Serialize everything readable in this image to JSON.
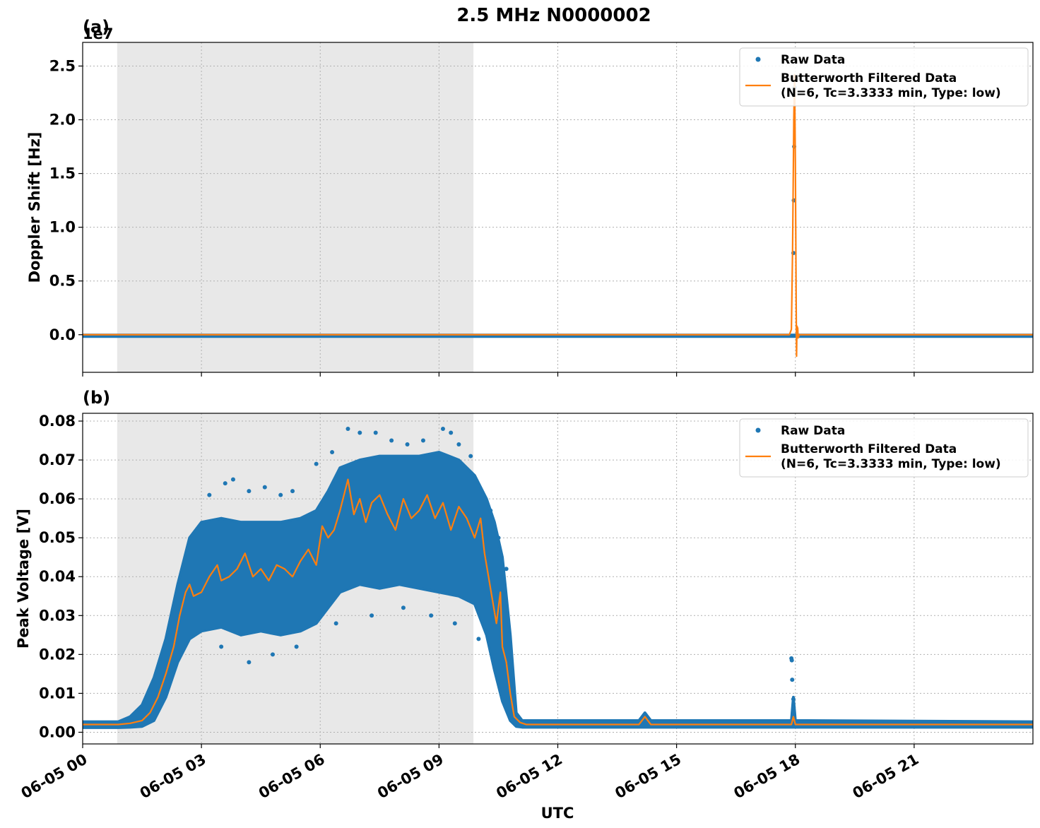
{
  "figure": {
    "title": "2.5 MHz N0000002",
    "xlabel": "UTC"
  },
  "colors": {
    "raw": "#1f77b4",
    "filtered": "#ff7f0e",
    "shade": "#e8e8e8",
    "grid": "#b0b0b0"
  },
  "chart_data": [
    {
      "type": "scatter",
      "panel_label": "(a)",
      "ylabel": "Doppler Shift [Hz]",
      "y_exponent_label": "1e7",
      "x_unit": "hours UTC on 06-05",
      "xlim": [
        0,
        24
      ],
      "ylim": [
        -0.35,
        2.72
      ],
      "y_scale_note": "values in units of 1e7 Hz",
      "yticks": [
        0.0,
        0.5,
        1.0,
        1.5,
        2.0,
        2.5
      ],
      "ytick_labels": [
        "0.0",
        "0.5",
        "1.0",
        "1.5",
        "2.0",
        "2.5"
      ],
      "xticks": [
        0,
        3,
        6,
        9,
        12,
        15,
        18,
        21
      ],
      "xtick_labels": [
        "06-05 00",
        "06-05 03",
        "06-05 06",
        "06-05 09",
        "06-05 12",
        "06-05 15",
        "06-05 18",
        "06-05 21"
      ],
      "shaded_region": [
        0.87,
        9.87
      ],
      "grid": true,
      "legend": {
        "position": "top-right",
        "entries": [
          {
            "label": "Raw Data",
            "marker": "dot"
          },
          {
            "label": "Butterworth Filtered Data",
            "label2": "(N=6, Tc=3.3333 min, Type: low)",
            "marker": "line"
          }
        ]
      },
      "series": [
        {
          "name": "Raw Data",
          "baseline": [
            [
              0,
              -0.01
            ],
            [
              24,
              -0.01
            ]
          ],
          "points": [
            [
              17.95,
              0.76
            ],
            [
              17.96,
              1.25
            ],
            [
              17.97,
              1.75
            ],
            [
              17.98,
              2.3
            ]
          ]
        },
        {
          "name": "Butterworth Filtered Data",
          "points": [
            [
              0,
              0.0
            ],
            [
              17.85,
              0.0
            ],
            [
              17.9,
              0.05
            ],
            [
              17.93,
              0.8
            ],
            [
              17.96,
              2.0
            ],
            [
              17.98,
              2.42
            ],
            [
              18.0,
              1.6
            ],
            [
              18.02,
              0.3
            ],
            [
              18.03,
              -0.2
            ],
            [
              18.04,
              0.08
            ],
            [
              18.06,
              0.06
            ],
            [
              18.07,
              -0.03
            ],
            [
              18.1,
              0.0
            ],
            [
              24,
              0.0
            ]
          ]
        }
      ]
    },
    {
      "type": "scatter",
      "panel_label": "(b)",
      "ylabel": "Peak Voltage [V]",
      "x_unit": "hours UTC on 06-05",
      "xlim": [
        0,
        24
      ],
      "ylim": [
        -0.003,
        0.082
      ],
      "yticks": [
        0.0,
        0.01,
        0.02,
        0.03,
        0.04,
        0.05,
        0.06,
        0.07,
        0.08
      ],
      "ytick_labels": [
        "0.00",
        "0.01",
        "0.02",
        "0.03",
        "0.04",
        "0.05",
        "0.06",
        "0.07",
        "0.08"
      ],
      "xticks": [
        0,
        3,
        6,
        9,
        12,
        15,
        18,
        21
      ],
      "xtick_labels": [
        "06-05 00",
        "06-05 03",
        "06-05 06",
        "06-05 09",
        "06-05 12",
        "06-05 15",
        "06-05 18",
        "06-05 21"
      ],
      "shaded_region": [
        0.87,
        9.87
      ],
      "grid": true,
      "legend": {
        "position": "top-right",
        "entries": [
          {
            "label": "Raw Data",
            "marker": "dot"
          },
          {
            "label": "Butterworth Filtered Data",
            "label2": "(N=6, Tc=3.3333 min, Type: low)",
            "marker": "line"
          }
        ]
      },
      "series": [
        {
          "name": "Raw Data",
          "band_upper": [
            [
              0,
              0.0027
            ],
            [
              0.9,
              0.0027
            ],
            [
              1.2,
              0.004
            ],
            [
              1.5,
              0.007
            ],
            [
              1.8,
              0.014
            ],
            [
              2.1,
              0.024
            ],
            [
              2.4,
              0.038
            ],
            [
              2.7,
              0.05
            ],
            [
              3.0,
              0.054
            ],
            [
              3.5,
              0.055
            ],
            [
              4.0,
              0.054
            ],
            [
              4.5,
              0.054
            ],
            [
              5.0,
              0.054
            ],
            [
              5.5,
              0.055
            ],
            [
              5.9,
              0.057
            ],
            [
              6.2,
              0.062
            ],
            [
              6.5,
              0.068
            ],
            [
              7.0,
              0.07
            ],
            [
              7.5,
              0.071
            ],
            [
              8.0,
              0.071
            ],
            [
              8.5,
              0.071
            ],
            [
              9.0,
              0.072
            ],
            [
              9.5,
              0.07
            ],
            [
              9.9,
              0.066
            ],
            [
              10.2,
              0.06
            ],
            [
              10.4,
              0.054
            ],
            [
              10.6,
              0.045
            ],
            [
              10.8,
              0.025
            ],
            [
              10.95,
              0.005
            ],
            [
              11.1,
              0.003
            ],
            [
              14.05,
              0.003
            ],
            [
              14.2,
              0.005
            ],
            [
              14.35,
              0.003
            ],
            [
              17.9,
              0.003
            ],
            [
              17.95,
              0.009
            ],
            [
              18.0,
              0.003
            ],
            [
              24,
              0.0027
            ]
          ],
          "band_lower": [
            [
              0,
              0.0012
            ],
            [
              0.9,
              0.0012
            ],
            [
              1.2,
              0.0013
            ],
            [
              1.5,
              0.0015
            ],
            [
              1.8,
              0.003
            ],
            [
              2.1,
              0.009
            ],
            [
              2.4,
              0.018
            ],
            [
              2.7,
              0.024
            ],
            [
              3.0,
              0.026
            ],
            [
              3.5,
              0.027
            ],
            [
              4.0,
              0.025
            ],
            [
              4.5,
              0.026
            ],
            [
              5.0,
              0.025
            ],
            [
              5.5,
              0.026
            ],
            [
              5.9,
              0.028
            ],
            [
              6.2,
              0.032
            ],
            [
              6.5,
              0.036
            ],
            [
              7.0,
              0.038
            ],
            [
              7.5,
              0.037
            ],
            [
              8.0,
              0.038
            ],
            [
              8.5,
              0.037
            ],
            [
              9.0,
              0.036
            ],
            [
              9.5,
              0.035
            ],
            [
              9.9,
              0.033
            ],
            [
              10.2,
              0.025
            ],
            [
              10.4,
              0.016
            ],
            [
              10.6,
              0.008
            ],
            [
              10.8,
              0.003
            ],
            [
              10.95,
              0.0015
            ],
            [
              11.1,
              0.0013
            ],
            [
              24,
              0.0013
            ]
          ],
          "outliers": [
            [
              3.2,
              0.061
            ],
            [
              3.6,
              0.064
            ],
            [
              3.8,
              0.065
            ],
            [
              4.2,
              0.062
            ],
            [
              4.6,
              0.063
            ],
            [
              5.0,
              0.061
            ],
            [
              5.3,
              0.062
            ],
            [
              5.9,
              0.069
            ],
            [
              6.3,
              0.072
            ],
            [
              6.7,
              0.078
            ],
            [
              7.0,
              0.077
            ],
            [
              7.4,
              0.077
            ],
            [
              7.8,
              0.075
            ],
            [
              8.2,
              0.074
            ],
            [
              8.6,
              0.075
            ],
            [
              9.1,
              0.078
            ],
            [
              9.3,
              0.077
            ],
            [
              9.5,
              0.074
            ],
            [
              9.8,
              0.071
            ],
            [
              10.1,
              0.061
            ],
            [
              10.3,
              0.057
            ],
            [
              10.5,
              0.05
            ],
            [
              10.7,
              0.042
            ],
            [
              3.5,
              0.022
            ],
            [
              4.2,
              0.018
            ],
            [
              4.8,
              0.02
            ],
            [
              5.4,
              0.022
            ],
            [
              6.4,
              0.028
            ],
            [
              7.3,
              0.03
            ],
            [
              8.1,
              0.032
            ],
            [
              8.8,
              0.03
            ],
            [
              9.4,
              0.028
            ],
            [
              10.0,
              0.024
            ],
            [
              17.9,
              0.019
            ],
            [
              17.91,
              0.0185
            ],
            [
              17.92,
              0.0135
            ],
            [
              17.95,
              0.0085
            ]
          ],
          "color": "#1f77b4"
        },
        {
          "name": "Butterworth Filtered Data",
          "points": [
            [
              0,
              0.002
            ],
            [
              0.9,
              0.002
            ],
            [
              1.2,
              0.0023
            ],
            [
              1.5,
              0.003
            ],
            [
              1.7,
              0.005
            ],
            [
              1.9,
              0.009
            ],
            [
              2.1,
              0.015
            ],
            [
              2.3,
              0.022
            ],
            [
              2.45,
              0.03
            ],
            [
              2.6,
              0.036
            ],
            [
              2.7,
              0.038
            ],
            [
              2.8,
              0.035
            ],
            [
              3.0,
              0.036
            ],
            [
              3.2,
              0.04
            ],
            [
              3.4,
              0.043
            ],
            [
              3.5,
              0.039
            ],
            [
              3.7,
              0.04
            ],
            [
              3.9,
              0.042
            ],
            [
              4.1,
              0.046
            ],
            [
              4.3,
              0.04
            ],
            [
              4.5,
              0.042
            ],
            [
              4.7,
              0.039
            ],
            [
              4.9,
              0.043
            ],
            [
              5.1,
              0.042
            ],
            [
              5.3,
              0.04
            ],
            [
              5.5,
              0.044
            ],
            [
              5.7,
              0.047
            ],
            [
              5.9,
              0.043
            ],
            [
              6.05,
              0.053
            ],
            [
              6.2,
              0.05
            ],
            [
              6.35,
              0.052
            ],
            [
              6.5,
              0.057
            ],
            [
              6.7,
              0.065
            ],
            [
              6.85,
              0.056
            ],
            [
              7.0,
              0.06
            ],
            [
              7.15,
              0.054
            ],
            [
              7.3,
              0.059
            ],
            [
              7.5,
              0.061
            ],
            [
              7.7,
              0.056
            ],
            [
              7.9,
              0.052
            ],
            [
              8.1,
              0.06
            ],
            [
              8.3,
              0.055
            ],
            [
              8.5,
              0.057
            ],
            [
              8.7,
              0.061
            ],
            [
              8.9,
              0.055
            ],
            [
              9.1,
              0.059
            ],
            [
              9.3,
              0.052
            ],
            [
              9.5,
              0.058
            ],
            [
              9.7,
              0.055
            ],
            [
              9.9,
              0.05
            ],
            [
              10.05,
              0.055
            ],
            [
              10.15,
              0.046
            ],
            [
              10.25,
              0.04
            ],
            [
              10.35,
              0.034
            ],
            [
              10.45,
              0.028
            ],
            [
              10.55,
              0.036
            ],
            [
              10.6,
              0.022
            ],
            [
              10.7,
              0.018
            ],
            [
              10.8,
              0.01
            ],
            [
              10.9,
              0.004
            ],
            [
              11.05,
              0.0025
            ],
            [
              11.2,
              0.002
            ],
            [
              14.05,
              0.002
            ],
            [
              14.2,
              0.004
            ],
            [
              14.35,
              0.002
            ],
            [
              17.9,
              0.002
            ],
            [
              17.95,
              0.004
            ],
            [
              18.0,
              0.002
            ],
            [
              24,
              0.002
            ]
          ],
          "color": "#ff7f0e"
        }
      ]
    }
  ]
}
